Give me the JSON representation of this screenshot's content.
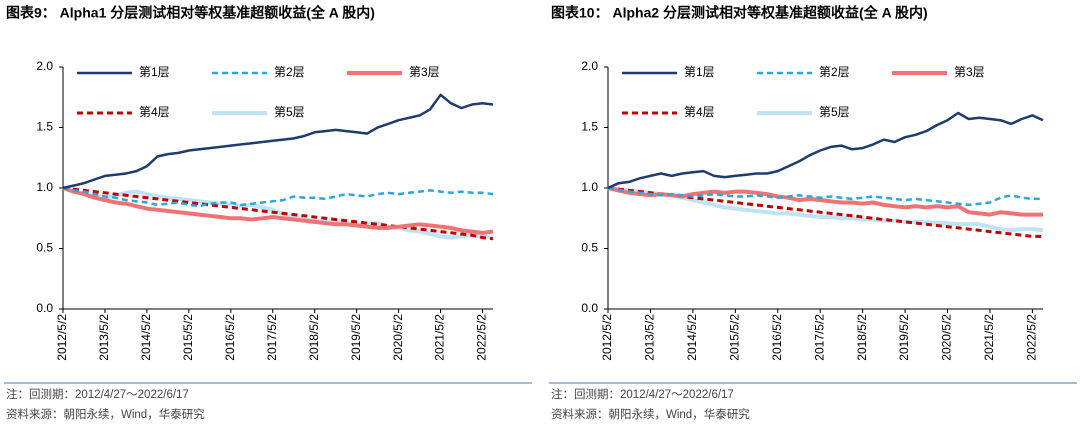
{
  "chart_data": [
    {
      "type": "line",
      "title": "图表9： Alpha1 分层测试相对等权基准超额收益(全 A 股内)",
      "note": "注：回测期：2012/4/27～2022/6/17",
      "source": "资料来源：朝阳永续，Wind，华泰研究",
      "categories": [
        "2012/5/2",
        null,
        null,
        null,
        "2013/5/2",
        null,
        null,
        null,
        "2014/5/2",
        null,
        null,
        null,
        "2015/5/2",
        null,
        null,
        null,
        "2016/5/2",
        null,
        null,
        null,
        "2017/5/2",
        null,
        null,
        null,
        "2018/5/2",
        null,
        null,
        null,
        "2019/5/2",
        null,
        null,
        null,
        "2020/5/2",
        null,
        null,
        null,
        "2021/5/2",
        null,
        null,
        null,
        "2022/5/2",
        null
      ],
      "ylim": [
        0,
        2
      ],
      "yticks": [
        {
          "value": 0,
          "label": "0.0"
        },
        {
          "value": 0.5,
          "label": "0.5"
        },
        {
          "value": 1,
          "label": "1.0"
        },
        {
          "value": 1.5,
          "label": "1.5"
        },
        {
          "value": 2,
          "label": "2.0"
        }
      ],
      "series": [
        {
          "name": "第1层",
          "color": "#1f3b70",
          "line_style": "solid",
          "line_width": 2.5,
          "values": [
            1.0,
            1.02,
            1.04,
            1.07,
            1.1,
            1.11,
            1.12,
            1.14,
            1.18,
            1.26,
            1.28,
            1.29,
            1.31,
            1.32,
            1.33,
            1.34,
            1.35,
            1.36,
            1.37,
            1.38,
            1.39,
            1.4,
            1.41,
            1.43,
            1.46,
            1.47,
            1.48,
            1.47,
            1.46,
            1.45,
            1.5,
            1.53,
            1.56,
            1.58,
            1.6,
            1.65,
            1.77,
            1.7,
            1.66,
            1.69,
            1.7,
            1.69
          ]
        },
        {
          "name": "第2层",
          "color": "#2aa6e0",
          "line_style": "dashed",
          "line_width": 2.5,
          "values": [
            1.0,
            0.98,
            0.97,
            0.95,
            0.93,
            0.92,
            0.9,
            0.89,
            0.88,
            0.86,
            0.87,
            0.88,
            0.86,
            0.85,
            0.87,
            0.88,
            0.88,
            0.86,
            0.87,
            0.88,
            0.89,
            0.9,
            0.93,
            0.92,
            0.92,
            0.91,
            0.93,
            0.95,
            0.94,
            0.93,
            0.95,
            0.96,
            0.95,
            0.96,
            0.97,
            0.98,
            0.97,
            0.96,
            0.97,
            0.96,
            0.96,
            0.95
          ]
        },
        {
          "name": "第3层",
          "color": "#f07272",
          "line_style": "solid",
          "line_width": 4,
          "values": [
            1.0,
            0.97,
            0.95,
            0.92,
            0.9,
            0.88,
            0.87,
            0.85,
            0.83,
            0.82,
            0.81,
            0.8,
            0.79,
            0.78,
            0.77,
            0.76,
            0.75,
            0.75,
            0.74,
            0.75,
            0.76,
            0.75,
            0.74,
            0.73,
            0.72,
            0.71,
            0.7,
            0.7,
            0.69,
            0.68,
            0.67,
            0.67,
            0.68,
            0.69,
            0.7,
            0.69,
            0.68,
            0.67,
            0.65,
            0.64,
            0.63,
            0.64
          ]
        },
        {
          "name": "第4层",
          "color": "#c00000",
          "line_style": "dashed",
          "line_width": 3,
          "values": [
            1.0,
            0.99,
            0.98,
            0.97,
            0.96,
            0.95,
            0.94,
            0.93,
            0.92,
            0.91,
            0.9,
            0.89,
            0.88,
            0.87,
            0.86,
            0.85,
            0.84,
            0.83,
            0.82,
            0.81,
            0.8,
            0.79,
            0.78,
            0.77,
            0.76,
            0.75,
            0.74,
            0.73,
            0.72,
            0.71,
            0.7,
            0.69,
            0.68,
            0.67,
            0.66,
            0.65,
            0.64,
            0.63,
            0.62,
            0.61,
            0.59,
            0.58
          ]
        },
        {
          "name": "第5层",
          "color": "#bde3f5",
          "line_style": "solid",
          "line_width": 4,
          "values": [
            1.0,
            0.97,
            0.95,
            0.93,
            0.92,
            0.94,
            0.96,
            0.97,
            0.95,
            0.93,
            0.92,
            0.91,
            0.9,
            0.89,
            0.88,
            0.87,
            0.86,
            0.85,
            0.86,
            0.84,
            0.82,
            0.78,
            0.76,
            0.74,
            0.73,
            0.72,
            0.72,
            0.71,
            0.7,
            0.7,
            0.71,
            0.68,
            0.67,
            0.65,
            0.64,
            0.62,
            0.6,
            0.59,
            0.6,
            0.61,
            0.6,
            0.59
          ]
        }
      ]
    },
    {
      "type": "line",
      "title": "图表10： Alpha2 分层测试相对等权基准超额收益(全 A 股内)",
      "note": "注：回测期：2012/4/27～2022/6/17",
      "source": "资料来源：朝阳永续，Wind，华泰研究",
      "categories": [
        "2012/5/2",
        null,
        null,
        null,
        "2013/5/2",
        null,
        null,
        null,
        "2014/5/2",
        null,
        null,
        null,
        "2015/5/2",
        null,
        null,
        null,
        "2016/5/2",
        null,
        null,
        null,
        "2017/5/2",
        null,
        null,
        null,
        "2018/5/2",
        null,
        null,
        null,
        "2019/5/2",
        null,
        null,
        null,
        "2020/5/2",
        null,
        null,
        null,
        "2021/5/2",
        null,
        null,
        null,
        "2022/5/2",
        null
      ],
      "ylim": [
        0,
        2
      ],
      "yticks": [
        {
          "value": 0,
          "label": "0.0"
        },
        {
          "value": 0.5,
          "label": "0.5"
        },
        {
          "value": 1,
          "label": "1.0"
        },
        {
          "value": 1.5,
          "label": "1.5"
        },
        {
          "value": 2,
          "label": "2.0"
        }
      ],
      "series": [
        {
          "name": "第1层",
          "color": "#1f3b70",
          "line_style": "solid",
          "line_width": 2.5,
          "values": [
            1.0,
            1.04,
            1.05,
            1.08,
            1.1,
            1.12,
            1.1,
            1.12,
            1.13,
            1.14,
            1.1,
            1.09,
            1.1,
            1.11,
            1.12,
            1.12,
            1.14,
            1.18,
            1.22,
            1.27,
            1.31,
            1.34,
            1.35,
            1.32,
            1.33,
            1.36,
            1.4,
            1.38,
            1.42,
            1.44,
            1.47,
            1.52,
            1.56,
            1.62,
            1.57,
            1.58,
            1.57,
            1.56,
            1.53,
            1.57,
            1.6,
            1.56
          ]
        },
        {
          "name": "第2层",
          "color": "#2aa6e0",
          "line_style": "dashed",
          "line_width": 2.5,
          "values": [
            1.0,
            0.98,
            0.97,
            0.96,
            0.95,
            0.94,
            0.95,
            0.94,
            0.93,
            0.94,
            0.95,
            0.94,
            0.93,
            0.93,
            0.94,
            0.93,
            0.92,
            0.93,
            0.94,
            0.93,
            0.92,
            0.93,
            0.92,
            0.91,
            0.92,
            0.93,
            0.92,
            0.91,
            0.9,
            0.91,
            0.9,
            0.89,
            0.88,
            0.87,
            0.86,
            0.87,
            0.88,
            0.92,
            0.94,
            0.92,
            0.91,
            0.91
          ]
        },
        {
          "name": "第3层",
          "color": "#f07272",
          "line_style": "solid",
          "line_width": 4,
          "values": [
            1.0,
            0.98,
            0.96,
            0.95,
            0.94,
            0.95,
            0.94,
            0.93,
            0.95,
            0.96,
            0.97,
            0.96,
            0.97,
            0.97,
            0.96,
            0.95,
            0.93,
            0.92,
            0.9,
            0.91,
            0.9,
            0.89,
            0.88,
            0.88,
            0.87,
            0.88,
            0.86,
            0.85,
            0.84,
            0.85,
            0.84,
            0.85,
            0.84,
            0.85,
            0.8,
            0.79,
            0.78,
            0.8,
            0.79,
            0.78,
            0.78,
            0.78
          ]
        },
        {
          "name": "第4层",
          "color": "#c00000",
          "line_style": "dashed",
          "line_width": 3,
          "values": [
            1.0,
            0.99,
            0.98,
            0.97,
            0.96,
            0.95,
            0.94,
            0.93,
            0.92,
            0.91,
            0.9,
            0.89,
            0.88,
            0.87,
            0.86,
            0.85,
            0.84,
            0.83,
            0.82,
            0.81,
            0.8,
            0.79,
            0.78,
            0.77,
            0.76,
            0.75,
            0.74,
            0.73,
            0.72,
            0.71,
            0.7,
            0.69,
            0.68,
            0.67,
            0.66,
            0.65,
            0.64,
            0.63,
            0.62,
            0.61,
            0.6,
            0.6
          ]
        },
        {
          "name": "第5层",
          "color": "#bde3f5",
          "line_style": "solid",
          "line_width": 4,
          "values": [
            1.0,
            0.99,
            0.98,
            0.97,
            0.96,
            0.95,
            0.94,
            0.92,
            0.9,
            0.88,
            0.86,
            0.84,
            0.83,
            0.82,
            0.81,
            0.8,
            0.79,
            0.79,
            0.78,
            0.77,
            0.76,
            0.76,
            0.75,
            0.75,
            0.74,
            0.74,
            0.73,
            0.73,
            0.72,
            0.72,
            0.72,
            0.71,
            0.71,
            0.7,
            0.7,
            0.7,
            0.68,
            0.66,
            0.65,
            0.66,
            0.66,
            0.65
          ]
        }
      ]
    }
  ]
}
